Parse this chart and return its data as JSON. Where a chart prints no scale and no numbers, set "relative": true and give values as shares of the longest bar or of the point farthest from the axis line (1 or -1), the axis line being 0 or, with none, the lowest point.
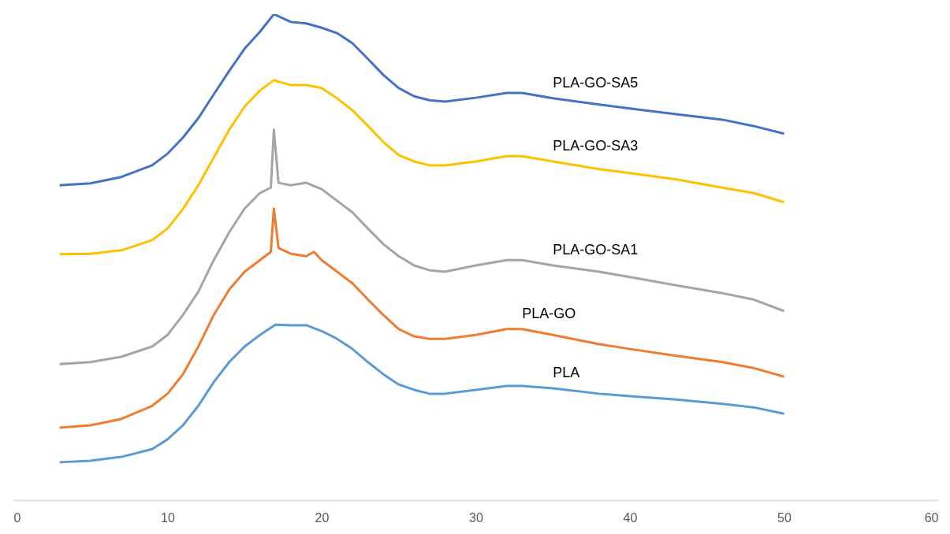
{
  "chart_data": {
    "type": "line",
    "relative": true,
    "xlim": [
      0,
      60
    ],
    "xticks": [
      0,
      10,
      20,
      30,
      40,
      50,
      60
    ],
    "grid": false,
    "legend": false,
    "tick_labels": "x",
    "series": [
      {
        "name": "PLA-GO-SA5",
        "color": "#4472c4",
        "x": [
          3,
          5,
          7,
          9,
          10,
          11,
          12,
          13,
          14,
          15,
          16,
          16.9,
          18,
          19,
          20,
          21,
          22,
          23,
          24,
          25,
          26,
          27,
          28,
          30,
          32,
          33,
          35,
          38,
          40,
          43,
          46,
          48,
          50
        ],
        "values": [
          0.648,
          0.652,
          0.665,
          0.689,
          0.713,
          0.746,
          0.786,
          0.835,
          0.883,
          0.929,
          0.964,
          1.0,
          0.984,
          0.981,
          0.972,
          0.961,
          0.94,
          0.908,
          0.875,
          0.848,
          0.831,
          0.823,
          0.82,
          0.828,
          0.838,
          0.838,
          0.827,
          0.814,
          0.806,
          0.794,
          0.783,
          0.77,
          0.754
        ]
      },
      {
        "name": "PLA-GO-SA3",
        "color": "#ffc000",
        "x": [
          3,
          5,
          7,
          9,
          10,
          11,
          12,
          13,
          14,
          15,
          16,
          16.9,
          18,
          19,
          20,
          21,
          22,
          23,
          24,
          25,
          26,
          27,
          28,
          30,
          32,
          33,
          35,
          38,
          40,
          43,
          46,
          48,
          50
        ],
        "values": [
          0.506,
          0.507,
          0.514,
          0.535,
          0.559,
          0.599,
          0.648,
          0.705,
          0.762,
          0.81,
          0.843,
          0.864,
          0.854,
          0.854,
          0.848,
          0.827,
          0.802,
          0.77,
          0.737,
          0.71,
          0.697,
          0.689,
          0.689,
          0.697,
          0.708,
          0.708,
          0.697,
          0.681,
          0.673,
          0.66,
          0.643,
          0.632,
          0.613
        ]
      },
      {
        "name": "PLA-GO-SA1",
        "color": "#a5a5a5",
        "x": [
          3,
          5,
          7,
          9,
          10,
          11,
          12,
          13,
          14,
          15,
          16,
          16.7,
          16.9,
          17.2,
          18,
          19,
          20,
          21,
          22,
          23,
          24,
          25,
          26,
          27,
          28,
          30,
          32,
          33,
          35,
          38,
          40,
          43,
          46,
          48,
          50
        ],
        "values": [
          0.28,
          0.284,
          0.295,
          0.316,
          0.34,
          0.381,
          0.429,
          0.494,
          0.551,
          0.6,
          0.632,
          0.643,
          0.762,
          0.653,
          0.648,
          0.653,
          0.64,
          0.616,
          0.592,
          0.559,
          0.527,
          0.502,
          0.483,
          0.473,
          0.47,
          0.483,
          0.494,
          0.494,
          0.483,
          0.47,
          0.459,
          0.442,
          0.426,
          0.413,
          0.389
        ]
      },
      {
        "name": "PLA-GO",
        "color": "#ed7d31",
        "x": [
          3,
          5,
          7,
          9,
          10,
          11,
          12,
          13,
          14,
          15,
          16,
          16.7,
          16.9,
          17.2,
          18,
          19,
          19.5,
          20,
          21,
          22,
          23,
          24,
          25,
          26,
          27,
          28,
          30,
          32,
          33,
          35,
          38,
          40,
          43,
          46,
          48,
          50
        ],
        "values": [
          0.149,
          0.154,
          0.167,
          0.194,
          0.219,
          0.259,
          0.316,
          0.381,
          0.433,
          0.47,
          0.494,
          0.511,
          0.6,
          0.519,
          0.507,
          0.502,
          0.511,
          0.494,
          0.47,
          0.446,
          0.413,
          0.381,
          0.352,
          0.337,
          0.332,
          0.332,
          0.34,
          0.352,
          0.352,
          0.34,
          0.321,
          0.311,
          0.297,
          0.284,
          0.272,
          0.254
        ]
      },
      {
        "name": "PLA",
        "color": "#5b9bd5",
        "x": [
          3,
          5,
          7,
          9,
          10,
          11,
          12,
          13,
          14,
          15,
          16,
          17,
          18,
          19,
          20,
          21,
          22,
          23,
          24,
          25,
          26,
          27,
          28,
          30,
          32,
          33,
          35,
          38,
          40,
          43,
          46,
          48,
          50
        ],
        "values": [
          0.078,
          0.081,
          0.089,
          0.105,
          0.125,
          0.154,
          0.194,
          0.243,
          0.284,
          0.316,
          0.34,
          0.361,
          0.36,
          0.36,
          0.348,
          0.332,
          0.311,
          0.284,
          0.259,
          0.238,
          0.227,
          0.219,
          0.219,
          0.227,
          0.235,
          0.235,
          0.23,
          0.219,
          0.214,
          0.207,
          0.198,
          0.191,
          0.178
        ]
      }
    ]
  }
}
